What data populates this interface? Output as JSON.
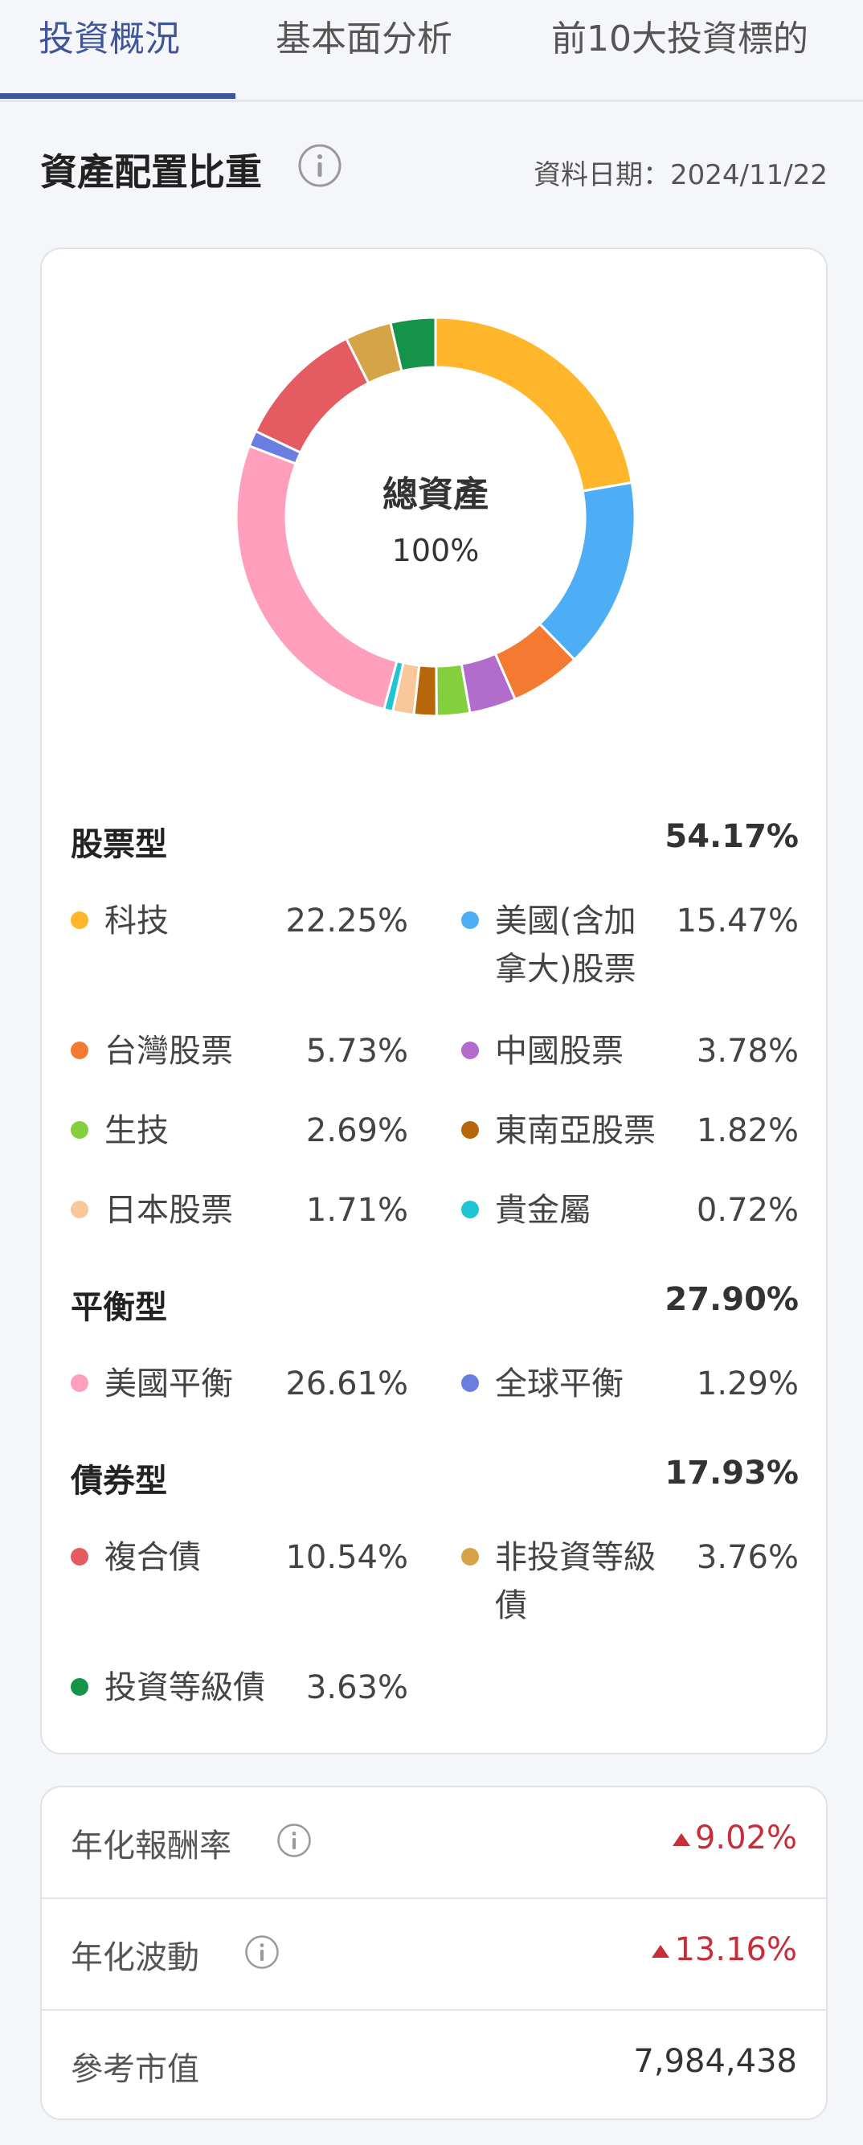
{
  "tabs": [
    {
      "label": "投資概況"
    },
    {
      "label": "基本面分析"
    },
    {
      "label": "前10大投資標的"
    }
  ],
  "allocation": {
    "title": "資產配置比重",
    "date_label": "資料日期：2024/11/22",
    "center_title": "總資產",
    "center_value": "100%"
  },
  "groups": [
    {
      "name": "股票型",
      "pct": "54.17%"
    },
    {
      "name": "平衡型",
      "pct": "27.90%"
    },
    {
      "name": "債券型",
      "pct": "17.93%"
    }
  ],
  "items": [
    {
      "label": "科技",
      "value": "22.25%",
      "color": "#ffb62b"
    },
    {
      "label": "美國(含加",
      "label2": "拿大)股票",
      "value": "15.47%",
      "color": "#4eaef5"
    },
    {
      "label": "台灣股票",
      "value": "5.73%",
      "color": "#f47a31"
    },
    {
      "label": "中國股票",
      "value": "3.78%",
      "color": "#b26ccb"
    },
    {
      "label": "生技",
      "value": "2.69%",
      "color": "#84cf3d"
    },
    {
      "label": "東南亞股票",
      "value": "1.82%",
      "color": "#b8660a"
    },
    {
      "label": "日本股票",
      "value": "1.71%",
      "color": "#f8c89b"
    },
    {
      "label": "貴金屬",
      "value": "0.72%",
      "color": "#1fc5d2"
    },
    {
      "label": "美國平衡",
      "value": "26.61%",
      "color": "#ff9fbc"
    },
    {
      "label": "全球平衡",
      "value": "1.29%",
      "color": "#6a7ee0"
    },
    {
      "label": "複合債",
      "value": "10.54%",
      "color": "#e45c61"
    },
    {
      "label": "非投資等級",
      "label2": "債",
      "value": "3.76%",
      "color": "#d4a446"
    },
    {
      "label": "投資等級債",
      "value": "3.63%",
      "color": "#15934a"
    }
  ],
  "chart_data": {
    "type": "pie",
    "title": "",
    "categories": [
      "科技",
      "美國(含加拿大)股票",
      "台灣股票",
      "中國股票",
      "生技",
      "東南亞股票",
      "日本股票",
      "貴金屬",
      "美國平衡",
      "全球平衡",
      "複合債",
      "非投資等級債",
      "投資等級債"
    ],
    "values": [
      22.25,
      15.47,
      5.73,
      3.78,
      2.69,
      1.82,
      1.71,
      0.72,
      26.61,
      1.29,
      10.54,
      3.76,
      3.63
    ],
    "colors": [
      "#ffb62b",
      "#4eaef5",
      "#f47a31",
      "#b26ccb",
      "#84cf3d",
      "#b8660a",
      "#f8c89b",
      "#1fc5d2",
      "#ff9fbc",
      "#6a7ee0",
      "#e45c61",
      "#d4a446",
      "#15934a"
    ],
    "center_text": [
      "總資產",
      "100%"
    ]
  },
  "stats": [
    {
      "label": "年化報酬率",
      "value": "9.02%",
      "trend": "up"
    },
    {
      "label": "年化波動",
      "value": "13.16%",
      "trend": "up"
    },
    {
      "label": "參考市值",
      "value": "7,984,438"
    }
  ],
  "icons": {
    "info": "info-circle-icon",
    "trend_up": "triangle-up-icon"
  }
}
